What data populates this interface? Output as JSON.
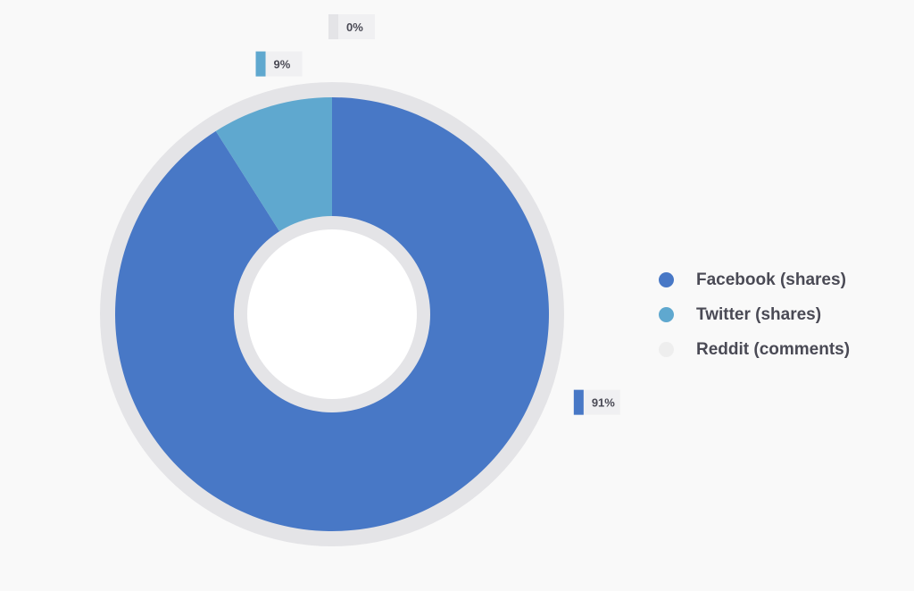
{
  "chart_data": {
    "type": "pie",
    "subtype": "donut",
    "categories": [
      "Facebook (shares)",
      "Twitter (shares)",
      "Reddit (comments)"
    ],
    "values": [
      91,
      9,
      0
    ],
    "labels": [
      "91%",
      "9%",
      "0%"
    ],
    "colors": [
      "#4878c6",
      "#5fa8cf",
      "#eeeeee"
    ],
    "legend": {
      "position": "right"
    },
    "ring_color": "#e4e4e7"
  }
}
